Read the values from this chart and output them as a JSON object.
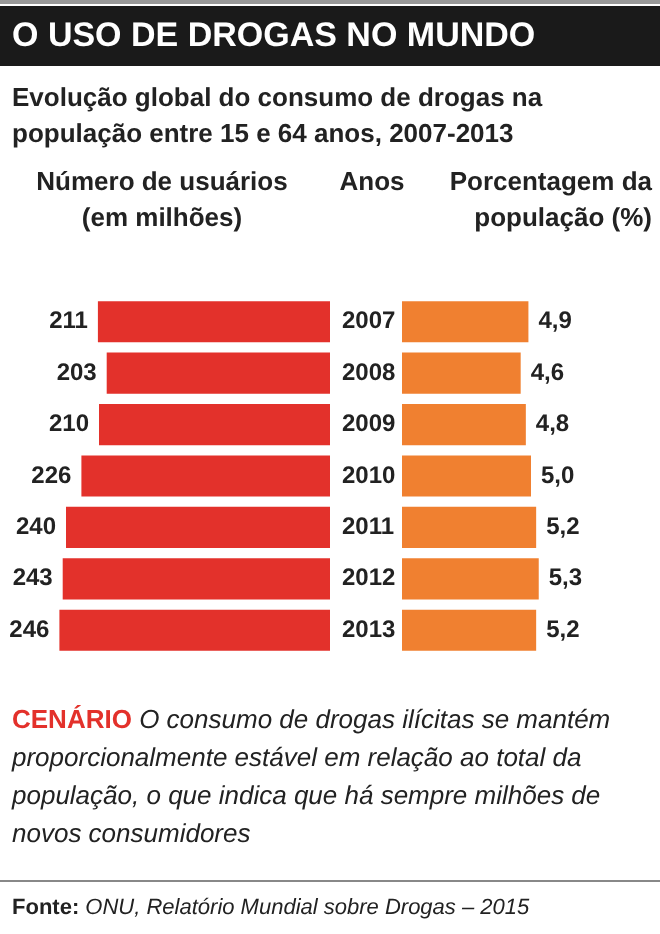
{
  "chart_data": [
    {
      "type": "bar",
      "orientation": "horizontal",
      "title": "O USO DE DROGAS NO MUNDO",
      "subtitle": "Evolução global do consumo de drogas na população entre 15 e 64 anos, 2007-2013",
      "xlabel": "Número de usuários (em milhões)",
      "ylabel": "Anos",
      "categories": [
        "2007",
        "2008",
        "2009",
        "2010",
        "2011",
        "2012",
        "2013"
      ],
      "values": [
        211,
        203,
        210,
        226,
        240,
        243,
        246
      ],
      "color": "#e3312b",
      "xlim": [
        300,
        0
      ],
      "data_labels": true,
      "tick_labels": "y",
      "annotations": [
        "CENÁRIO",
        "O consumo de drogas ilícitas se mantém proporcionalmente estável em relação ao total da população, o que indica que há sempre milhões de novos consumidores",
        "Fonte:",
        "ONU, Relatório Mundial sobre Drogas – 2015"
      ]
    },
    {
      "type": "bar",
      "orientation": "horizontal",
      "xlabel": "Porcentagem da população (%)",
      "categories": [
        "2007",
        "2008",
        "2009",
        "2010",
        "2011",
        "2012",
        "2013"
      ],
      "values": [
        4.9,
        4.6,
        4.8,
        5.0,
        5.2,
        5.3,
        5.2
      ],
      "color": "#f08030",
      "xlim": [
        0,
        10
      ],
      "tick_labels": false,
      "value_labels": [
        "4,9",
        "4,6",
        "4,8",
        "5,0",
        "5,2",
        "5,3",
        "5,2"
      ]
    }
  ]
}
